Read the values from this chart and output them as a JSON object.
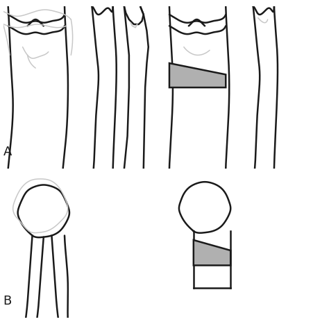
{
  "background_color": "#ffffff",
  "line_color": "#1a1a1a",
  "gray_color": "#b0b0b0",
  "light_gray": "#c8c8c8",
  "label_A": "A",
  "label_B": "B",
  "figsize": [
    4.74,
    4.67
  ],
  "dpi": 100
}
